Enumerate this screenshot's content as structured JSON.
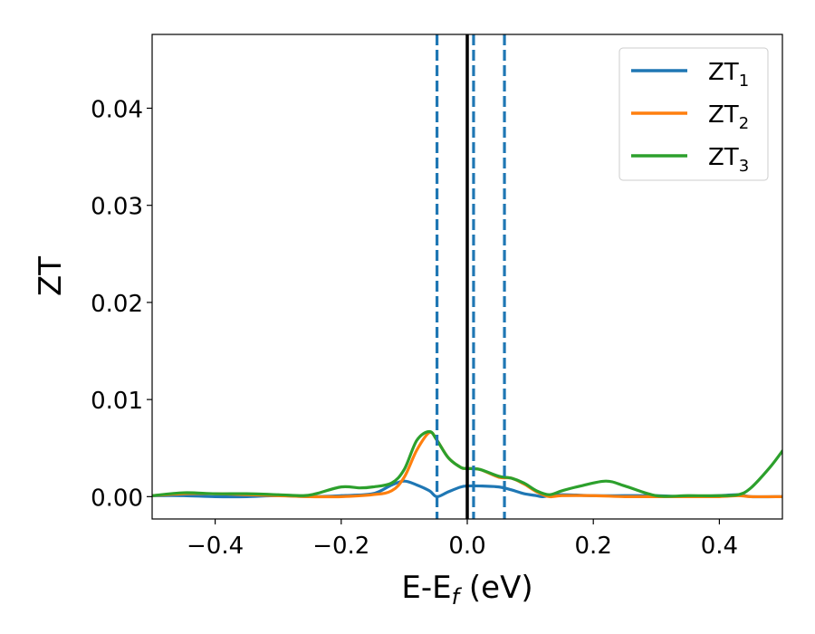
{
  "chart_data": {
    "type": "line",
    "xlabel": "E-E",
    "xlabel_sub": "f",
    "xlabel_unit": " (eV)",
    "ylabel": "ZT",
    "xlim": [
      -0.5,
      0.5
    ],
    "ylim": [
      -0.0023,
      0.0476
    ],
    "x_ticks": [
      -0.4,
      -0.2,
      0.0,
      0.2,
      0.4
    ],
    "x_tick_labels": [
      "−0.4",
      "−0.2",
      "0.0",
      "0.2",
      "0.4"
    ],
    "y_ticks": [
      0.0,
      0.01,
      0.02,
      0.03,
      0.04
    ],
    "y_tick_labels": [
      "0.00",
      "0.01",
      "0.02",
      "0.03",
      "0.04"
    ],
    "grid": false,
    "legend_position": "top-right",
    "vertical_lines": [
      {
        "x": 0.0,
        "style": "solid",
        "color": "#000000"
      },
      {
        "x": -0.048,
        "style": "dashed",
        "color": "#1f77b4"
      },
      {
        "x": 0.01,
        "style": "dashed",
        "color": "#1f77b4"
      },
      {
        "x": 0.059,
        "style": "dashed",
        "color": "#1f77b4"
      }
    ],
    "series": [
      {
        "name": "ZT",
        "name_sub": "1",
        "color": "#1f77b4",
        "x": [
          -0.5,
          -0.45,
          -0.4,
          -0.35,
          -0.3,
          -0.25,
          -0.2,
          -0.15,
          -0.12,
          -0.1,
          -0.08,
          -0.06,
          -0.048,
          -0.03,
          -0.01,
          0.0,
          0.02,
          0.05,
          0.07,
          0.09,
          0.11,
          0.12,
          0.15,
          0.2,
          0.25,
          0.3,
          0.35,
          0.4,
          0.43,
          0.45,
          0.5
        ],
        "values": [
          0.0001,
          0.0001,
          0.0,
          0.0,
          0.0001,
          0.0,
          0.0001,
          0.0003,
          0.0012,
          0.0016,
          0.0012,
          0.0006,
          0.0,
          0.0005,
          0.001,
          0.0011,
          0.0011,
          0.001,
          0.0007,
          0.0003,
          0.0001,
          0.0,
          0.0002,
          0.0001,
          0.0001,
          0.0001,
          0.0,
          0.0001,
          0.0002,
          0.0,
          0.0
        ]
      },
      {
        "name": "ZT",
        "name_sub": "2",
        "color": "#ff7f0e",
        "x": [
          -0.5,
          -0.45,
          -0.4,
          -0.35,
          -0.3,
          -0.25,
          -0.2,
          -0.15,
          -0.12,
          -0.1,
          -0.08,
          -0.06,
          -0.048,
          -0.03,
          -0.01,
          0.0,
          0.02,
          0.05,
          0.07,
          0.09,
          0.11,
          0.13,
          0.15,
          0.2,
          0.25,
          0.3,
          0.35,
          0.4,
          0.43,
          0.45,
          0.5
        ],
        "values": [
          0.0001,
          0.0003,
          0.0003,
          0.0002,
          0.0001,
          0.0,
          0.0,
          0.0002,
          0.0006,
          0.002,
          0.0048,
          0.0066,
          0.0058,
          0.004,
          0.003,
          0.0029,
          0.0028,
          0.002,
          0.0019,
          0.0013,
          0.0005,
          0.0,
          0.0001,
          0.0001,
          0.0,
          0.0,
          0.0,
          0.0,
          0.0001,
          0.0,
          0.0
        ]
      },
      {
        "name": "ZT",
        "name_sub": "3",
        "color": "#2ca02c",
        "x": [
          -0.5,
          -0.45,
          -0.4,
          -0.35,
          -0.3,
          -0.26,
          -0.24,
          -0.2,
          -0.17,
          -0.15,
          -0.12,
          -0.1,
          -0.08,
          -0.06,
          -0.048,
          -0.03,
          -0.01,
          0.0,
          0.02,
          0.05,
          0.07,
          0.09,
          0.11,
          0.13,
          0.15,
          0.18,
          0.22,
          0.25,
          0.3,
          0.35,
          0.4,
          0.43,
          0.45,
          0.48,
          0.5
        ],
        "values": [
          0.0001,
          0.0004,
          0.0003,
          0.0003,
          0.0002,
          0.0001,
          0.0003,
          0.001,
          0.0009,
          0.001,
          0.0014,
          0.0028,
          0.0058,
          0.0067,
          0.0058,
          0.004,
          0.003,
          0.0029,
          0.0028,
          0.0021,
          0.0019,
          0.0014,
          0.0006,
          0.0002,
          0.0006,
          0.0011,
          0.0016,
          0.0011,
          0.0001,
          0.0001,
          0.0001,
          0.0002,
          0.0009,
          0.003,
          0.0047
        ]
      }
    ]
  }
}
